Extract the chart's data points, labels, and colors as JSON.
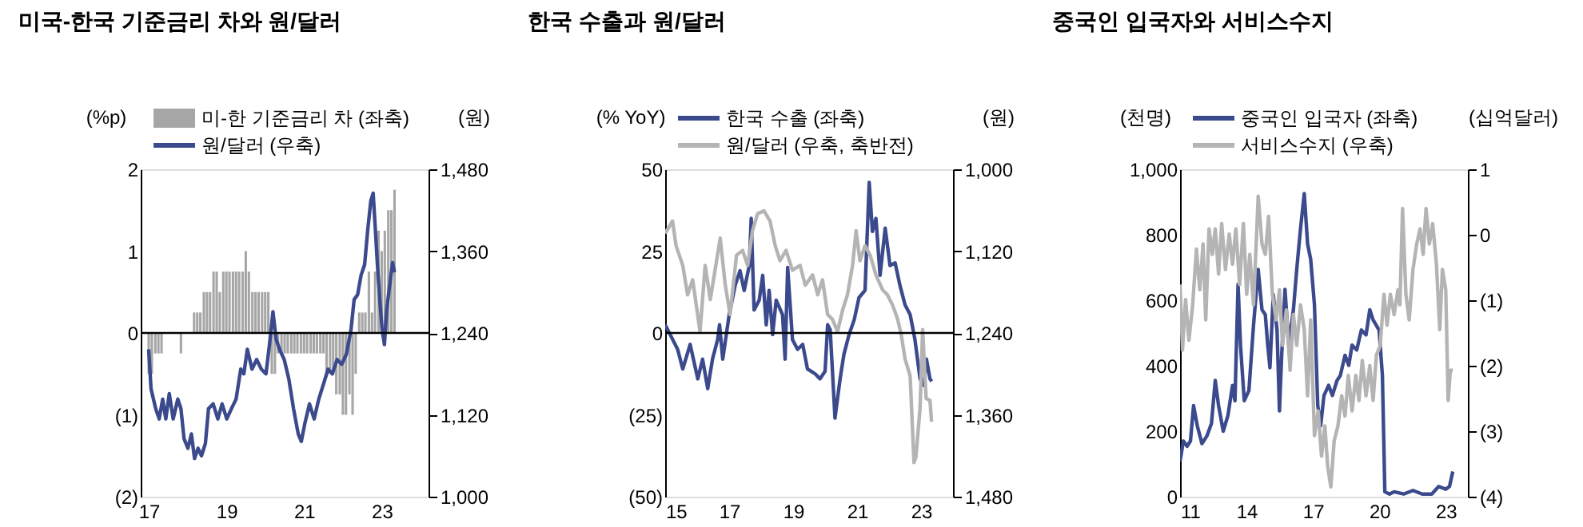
{
  "chart_data": [
    {
      "type": "line",
      "title": "미국-한국 기준금리 차와 원/달러",
      "ylabel": "(%p)",
      "y2label": "(원)",
      "legend": "top left",
      "grid": false,
      "xlim": [
        2017,
        2024
      ],
      "xticks": [
        {
          "value": 2017,
          "label": "17"
        },
        {
          "value": 2019,
          "label": "19"
        },
        {
          "value": 2021,
          "label": "21"
        },
        {
          "value": 2023,
          "label": "23"
        }
      ],
      "ylim": [
        -2,
        2
      ],
      "yticks": [
        {
          "value": -2,
          "label": "(2)"
        },
        {
          "value": -1,
          "label": "(1)"
        },
        0,
        1,
        2
      ],
      "y2lim": [
        1000,
        1480
      ],
      "y2ticks": [
        {
          "value": 1000,
          "label": "1,000"
        },
        {
          "value": 1120,
          "label": "1,120"
        },
        {
          "value": 1240,
          "label": "1,240"
        },
        {
          "value": 1360,
          "label": "1,360"
        },
        {
          "value": 1480,
          "label": "1,480"
        }
      ],
      "ref_lines": [
        {
          "axis": "y",
          "value": 0,
          "color": "#000000"
        }
      ],
      "series": [
        {
          "name": "미-한 기준금리 차 (좌축)",
          "type": "bar",
          "color": "#a6a6a6",
          "x": [
            2017.0,
            2017.08,
            2017.17,
            2017.25,
            2017.33,
            2017.42,
            2017.5,
            2017.58,
            2017.67,
            2017.75,
            2017.83,
            2017.92,
            2018.0,
            2018.08,
            2018.17,
            2018.25,
            2018.33,
            2018.42,
            2018.5,
            2018.58,
            2018.67,
            2018.75,
            2018.83,
            2018.92,
            2019.0,
            2019.08,
            2019.17,
            2019.25,
            2019.33,
            2019.42,
            2019.5,
            2019.58,
            2019.67,
            2019.75,
            2019.83,
            2019.92,
            2020.0,
            2020.08,
            2020.17,
            2020.25,
            2020.33,
            2020.42,
            2020.5,
            2020.58,
            2020.67,
            2020.75,
            2020.83,
            2020.92,
            2021.0,
            2021.08,
            2021.17,
            2021.25,
            2021.33,
            2021.42,
            2021.5,
            2021.58,
            2021.67,
            2021.75,
            2021.83,
            2021.92,
            2022.0,
            2022.08,
            2022.17,
            2022.25,
            2022.33,
            2022.42,
            2022.5,
            2022.58,
            2022.67,
            2022.75,
            2022.83,
            2022.92,
            2023.0,
            2023.08,
            2023.17,
            2023.25,
            2023.33
          ],
          "values": [
            -0.5,
            -0.5,
            -0.25,
            -0.25,
            -0.25,
            0,
            0,
            0,
            0,
            0,
            -0.25,
            0,
            0,
            0,
            0.25,
            0.25,
            0.25,
            0.5,
            0.5,
            0.5,
            0.75,
            0.75,
            0.5,
            0.75,
            0.75,
            0.75,
            0.75,
            0.75,
            0.75,
            0.75,
            1,
            0.75,
            0.5,
            0.5,
            0.5,
            0.5,
            0.5,
            0.5,
            -0.5,
            -0.5,
            -0.25,
            -0.25,
            -0.25,
            -0.25,
            -0.25,
            -0.25,
            -0.25,
            -0.25,
            -0.25,
            -0.25,
            -0.25,
            -0.25,
            -0.25,
            -0.25,
            -0.25,
            -0.5,
            -0.5,
            -0.5,
            -0.75,
            -0.75,
            -1,
            -1,
            -0.75,
            -1,
            -0.5,
            0.25,
            0.25,
            0.25,
            0.75,
            0.25,
            0.75,
            1.25,
            1,
            1.25,
            1.5,
            1.5,
            1.75
          ]
        },
        {
          "name": "원/달러 (우축)",
          "axis": "y2",
          "color": "#3b4a8c",
          "x": [
            2017.0,
            2017.06,
            2017.18,
            2017.27,
            2017.36,
            2017.44,
            2017.53,
            2017.63,
            2017.75,
            2017.83,
            2017.91,
            2018.01,
            2018.1,
            2018.18,
            2018.27,
            2018.36,
            2018.46,
            2018.54,
            2018.66,
            2018.78,
            2018.89,
            2019.01,
            2019.13,
            2019.25,
            2019.37,
            2019.45,
            2019.54,
            2019.66,
            2019.78,
            2019.9,
            2020.02,
            2020.11,
            2020.2,
            2020.28,
            2020.37,
            2020.49,
            2020.61,
            2020.73,
            2020.85,
            2020.93,
            2021.02,
            2021.14,
            2021.26,
            2021.38,
            2021.5,
            2021.62,
            2021.73,
            2021.85,
            2021.97,
            2022.09,
            2022.21,
            2022.29,
            2022.38,
            2022.47,
            2022.56,
            2022.64,
            2022.72,
            2022.78,
            2022.83,
            2022.89,
            2022.95,
            2023.01,
            2023.07,
            2023.13,
            2023.19,
            2023.24,
            2023.28,
            2023.33
          ],
          "values": [
            1216,
            1158,
            1129,
            1114,
            1143,
            1114,
            1151,
            1114,
            1143,
            1129,
            1085,
            1071,
            1092,
            1056,
            1071,
            1060,
            1078,
            1129,
            1136,
            1114,
            1136,
            1114,
            1129,
            1143,
            1187,
            1180,
            1216,
            1187,
            1201,
            1187,
            1180,
            1223,
            1271,
            1231,
            1216,
            1201,
            1172,
            1129,
            1092,
            1081,
            1107,
            1136,
            1114,
            1143,
            1165,
            1187,
            1180,
            1201,
            1194,
            1209,
            1245,
            1289,
            1296,
            1325,
            1340,
            1391,
            1434,
            1445,
            1398,
            1340,
            1289,
            1245,
            1223,
            1274,
            1303,
            1325,
            1343,
            1329
          ]
        }
      ]
    },
    {
      "type": "line",
      "title": "한국 수출과 원/달러",
      "ylabel": "(% YoY)",
      "y2label": "(원)",
      "legend": "top left",
      "grid": false,
      "xlim": [
        2015,
        2024
      ],
      "xticks": [
        {
          "value": 2015,
          "label": "15"
        },
        {
          "value": 2017,
          "label": "17"
        },
        {
          "value": 2019,
          "label": "19"
        },
        {
          "value": 2021,
          "label": "21"
        },
        {
          "value": 2023,
          "label": "23"
        }
      ],
      "ylim": [
        -50,
        50
      ],
      "yticks": [
        {
          "value": -50,
          "label": "(50)"
        },
        {
          "value": -25,
          "label": "(25)"
        },
        0,
        25,
        50
      ],
      "y2lim": [
        1480,
        1000
      ],
      "y2ticks": [
        {
          "value": 1000,
          "label": "1,000"
        },
        {
          "value": 1120,
          "label": "1,120"
        },
        {
          "value": 1240,
          "label": "1,240"
        },
        {
          "value": 1360,
          "label": "1,360"
        },
        {
          "value": 1480,
          "label": "1,480"
        }
      ],
      "ref_lines": [
        {
          "axis": "y",
          "value": 0,
          "color": "#000000"
        }
      ],
      "series": [
        {
          "name": "한국 수출 (좌축)",
          "color": "#3b4a8c",
          "x": [
            2015.0,
            2015.39,
            2015.55,
            2015.78,
            2016.02,
            2016.17,
            2016.33,
            2016.48,
            2016.64,
            2016.7,
            2016.8,
            2017.0,
            2017.19,
            2017.34,
            2017.47,
            2017.63,
            2017.69,
            2017.78,
            2017.94,
            2018.05,
            2018.16,
            2018.25,
            2018.36,
            2018.47,
            2018.67,
            2018.75,
            2018.83,
            2018.98,
            2019.14,
            2019.3,
            2019.45,
            2019.69,
            2019.84,
            2020.0,
            2020.08,
            2020.16,
            2020.31,
            2020.47,
            2020.59,
            2020.75,
            2020.91,
            2021.06,
            2021.25,
            2021.38,
            2021.48,
            2021.59,
            2021.72,
            2021.88,
            2022.03,
            2022.19,
            2022.34,
            2022.5,
            2022.66,
            2022.81,
            2022.97,
            2023.09,
            2023.17,
            2023.28,
            2023.33
          ],
          "values": [
            2.5,
            -5,
            -11,
            -3.5,
            -14,
            -8,
            -17,
            -8,
            -2,
            2.5,
            -8,
            5.5,
            14.6,
            19,
            13,
            20.6,
            35,
            7,
            10,
            17.6,
            2.5,
            13,
            -0.5,
            10,
            5.6,
            -8,
            20,
            -2,
            -5,
            -3.5,
            -11,
            -12.5,
            -14,
            -11.7,
            2.5,
            1,
            -26,
            -14,
            -6.5,
            -0.5,
            4,
            10.8,
            13,
            46,
            31,
            35,
            17.6,
            32,
            20.6,
            21.4,
            14.6,
            8.6,
            5.6,
            -2,
            -14,
            -16,
            -8,
            -14,
            -14.8
          ]
        },
        {
          "name": "원/달러 (우축, 축반전)",
          "axis": "y2",
          "color": "#b4b4b4",
          "x": [
            2015.0,
            2015.23,
            2015.34,
            2015.55,
            2015.7,
            2015.86,
            2016.09,
            2016.25,
            2016.41,
            2016.56,
            2016.72,
            2016.88,
            2017.03,
            2017.23,
            2017.42,
            2017.58,
            2017.73,
            2017.89,
            2018.09,
            2018.28,
            2018.44,
            2018.59,
            2018.78,
            2018.98,
            2019.22,
            2019.38,
            2019.61,
            2019.77,
            2019.92,
            2020.08,
            2020.23,
            2020.39,
            2020.55,
            2020.7,
            2020.86,
            2020.97,
            2021.09,
            2021.25,
            2021.41,
            2021.59,
            2021.8,
            2021.95,
            2022.11,
            2022.27,
            2022.38,
            2022.5,
            2022.66,
            2022.78,
            2022.84,
            2022.97,
            2023.05,
            2023.16,
            2023.28,
            2023.33
          ],
          "values": [
            1094,
            1076,
            1112,
            1141,
            1184,
            1162,
            1238,
            1141,
            1191,
            1148,
            1101,
            1170,
            1213,
            1126,
            1119,
            1141,
            1090,
            1065,
            1061,
            1076,
            1112,
            1134,
            1119,
            1148,
            1141,
            1170,
            1155,
            1184,
            1162,
            1213,
            1220,
            1238,
            1206,
            1184,
            1141,
            1090,
            1134,
            1112,
            1126,
            1155,
            1177,
            1184,
            1199,
            1220,
            1242,
            1278,
            1303,
            1430,
            1422,
            1350,
            1235,
            1336,
            1339,
            1370
          ]
        }
      ]
    },
    {
      "type": "line",
      "title": "중국인 입국자와 서비스수지",
      "ylabel": "(천명)",
      "y2label": "(십억달러)",
      "legend": "top left",
      "grid": false,
      "xlim": [
        2011,
        2024
      ],
      "xticks": [
        {
          "value": 2011,
          "label": "11"
        },
        {
          "value": 2014,
          "label": "14"
        },
        {
          "value": 2017,
          "label": "17"
        },
        {
          "value": 2020,
          "label": "20"
        },
        {
          "value": 2023,
          "label": "23"
        }
      ],
      "ylim": [
        0,
        1000
      ],
      "yticks": [
        0,
        200,
        400,
        600,
        800,
        {
          "value": 1000,
          "label": "1,000"
        }
      ],
      "y2lim": [
        -4,
        1
      ],
      "y2ticks": [
        {
          "value": -4,
          "label": "(4)"
        },
        {
          "value": -3,
          "label": "(3)"
        },
        {
          "value": -2,
          "label": "(2)"
        },
        {
          "value": -1,
          "label": "(1)"
        },
        0,
        1
      ],
      "series": [
        {
          "name": "중국인 입국자 (좌축)",
          "color": "#3b4a8c",
          "x": [
            2011.0,
            2011.15,
            2011.32,
            2011.47,
            2011.61,
            2011.78,
            2011.99,
            2012.21,
            2012.42,
            2012.59,
            2012.74,
            2012.95,
            2013.16,
            2013.37,
            2013.48,
            2013.62,
            2013.73,
            2013.9,
            2014.11,
            2014.32,
            2014.53,
            2014.7,
            2014.85,
            2014.96,
            2015.06,
            2015.21,
            2015.38,
            2015.49,
            2015.59,
            2015.74,
            2015.91,
            2016.12,
            2016.27,
            2016.44,
            2016.61,
            2016.76,
            2016.9,
            2017.07,
            2017.22,
            2017.35,
            2017.5,
            2017.71,
            2017.88,
            2018.09,
            2018.24,
            2018.45,
            2018.62,
            2018.77,
            2018.98,
            2019.19,
            2019.4,
            2019.57,
            2019.72,
            2019.99,
            2020.14,
            2020.25,
            2020.46,
            2020.67,
            2021.1,
            2021.52,
            2021.94,
            2022.37,
            2022.68,
            2023.0,
            2023.17,
            2023.32
          ],
          "values": [
            108,
            170,
            154,
            170,
            278,
            216,
            162,
            185,
            224,
            355,
            278,
            200,
            247,
            340,
            293,
            648,
            463,
            293,
            324,
            525,
            694,
            571,
            556,
            463,
            394,
            617,
            509,
            262,
            432,
            633,
            463,
            571,
            694,
            818,
            926,
            772,
            725,
            586,
            278,
            216,
            309,
            340,
            309,
            355,
            370,
            432,
            401,
            463,
            448,
            509,
            494,
            571,
            540,
            509,
            370,
            15,
            8,
            15,
            8,
            19,
            8,
            8,
            31,
            23,
            31,
            77
          ]
        },
        {
          "name": "서비스수지 (우축)",
          "axis": "y2",
          "color": "#b4b4b4",
          "x": [
            2011.0,
            2011.11,
            2011.25,
            2011.4,
            2011.57,
            2011.74,
            2011.89,
            2012.04,
            2012.16,
            2012.31,
            2012.46,
            2012.59,
            2012.74,
            2012.88,
            2013.05,
            2013.22,
            2013.37,
            2013.52,
            2013.69,
            2013.86,
            2014.01,
            2014.15,
            2014.32,
            2014.53,
            2014.7,
            2014.85,
            2015.0,
            2015.17,
            2015.34,
            2015.49,
            2015.63,
            2015.8,
            2015.97,
            2016.12,
            2016.27,
            2016.44,
            2016.61,
            2016.76,
            2016.9,
            2017.07,
            2017.24,
            2017.39,
            2017.54,
            2017.67,
            2017.81,
            2017.96,
            2018.13,
            2018.3,
            2018.45,
            2018.6,
            2018.77,
            2018.94,
            2019.08,
            2019.23,
            2019.4,
            2019.57,
            2019.72,
            2019.87,
            2020.04,
            2020.21,
            2020.35,
            2020.5,
            2020.67,
            2020.84,
            2020.93,
            2021.05,
            2021.2,
            2021.35,
            2021.52,
            2021.69,
            2021.84,
            2021.98,
            2022.11,
            2022.26,
            2022.41,
            2022.58,
            2022.73,
            2022.85,
            2023.0,
            2023.11,
            2023.21,
            2023.32
          ],
          "values": [
            -0.76,
            -1.76,
            -0.99,
            -1.61,
            -1.07,
            -0.22,
            -0.84,
            -0.14,
            -1.3,
            0.09,
            -0.3,
            0.09,
            -0.6,
            0.17,
            -0.53,
            0.01,
            -0.45,
            0.09,
            -0.76,
            0.17,
            -0.91,
            -0.3,
            -1.07,
            0.59,
            -0.14,
            -0.3,
            0.28,
            -0.91,
            -1.3,
            -0.84,
            -1.69,
            -1.15,
            -2.07,
            -1.22,
            -1.69,
            -1.07,
            -1.45,
            -2.46,
            -1.3,
            -3.07,
            -2.69,
            -3.38,
            -2.92,
            -3.54,
            -3.85,
            -3.15,
            -2.92,
            -2.46,
            -2.77,
            -2.15,
            -2.69,
            -2.15,
            -2.53,
            -1.92,
            -2.46,
            -2.0,
            -2.53,
            -1.84,
            -1.69,
            -0.91,
            -1.38,
            -0.91,
            -1.22,
            -0.84,
            -1.07,
            0.4,
            -0.91,
            -1.3,
            -0.53,
            -0.14,
            0.09,
            -0.3,
            0.4,
            -0.14,
            0.17,
            -0.45,
            -1.45,
            -0.53,
            -0.84,
            -2.53,
            -2.07,
            -2.07
          ]
        }
      ]
    }
  ]
}
